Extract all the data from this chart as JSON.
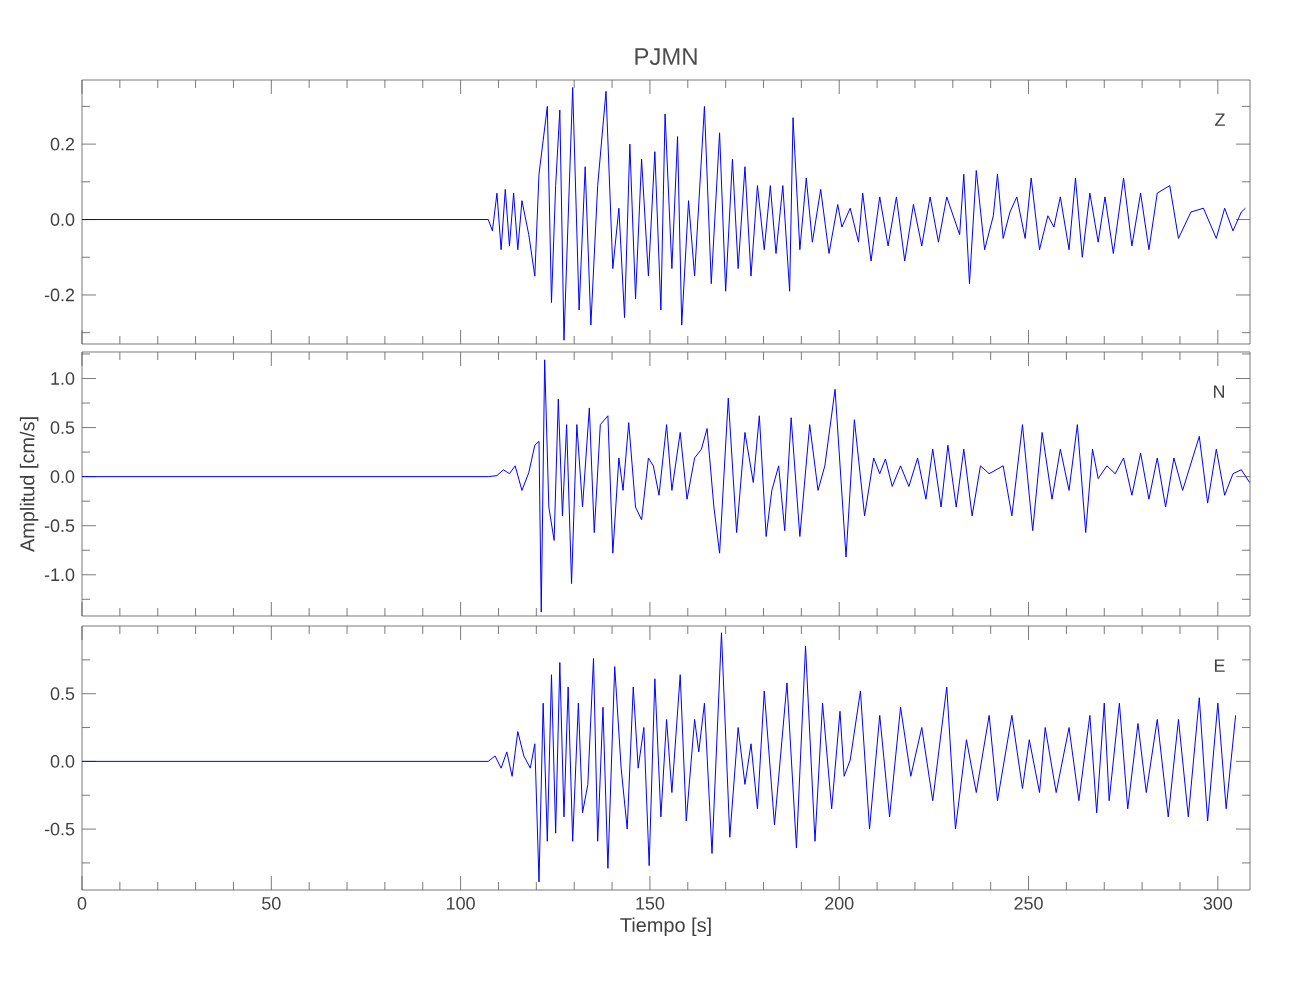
{
  "chart_data": [
    {
      "type": "line",
      "title": "PJMN",
      "annotations": [
        "Z"
      ],
      "color": "#0000ff",
      "tick_labels": "y",
      "xlim": [
        0,
        308.5
      ],
      "ylim": [
        -0.33,
        0.37
      ],
      "xticks": [
        0,
        {
          "value": 10,
          "label": null
        },
        {
          "value": 20,
          "label": null
        },
        {
          "value": 30,
          "label": null
        },
        {
          "value": 40,
          "label": null
        },
        50,
        {
          "value": 60,
          "label": null
        },
        {
          "value": 70,
          "label": null
        },
        {
          "value": 80,
          "label": null
        },
        {
          "value": 90,
          "label": null
        },
        100,
        {
          "value": 110,
          "label": null
        },
        {
          "value": 120,
          "label": null
        },
        {
          "value": 130,
          "label": null
        },
        {
          "value": 140,
          "label": null
        },
        150,
        {
          "value": 160,
          "label": null
        },
        {
          "value": 170,
          "label": null
        },
        {
          "value": 180,
          "label": null
        },
        {
          "value": 190,
          "label": null
        },
        200,
        {
          "value": 210,
          "label": null
        },
        {
          "value": 220,
          "label": null
        },
        {
          "value": 230,
          "label": null
        },
        {
          "value": 240,
          "label": null
        },
        250,
        {
          "value": 260,
          "label": null
        },
        {
          "value": 270,
          "label": null
        },
        {
          "value": 280,
          "label": null
        },
        {
          "value": 290,
          "label": null
        },
        300
      ],
      "yticks": [
        {
          "value": -0.3,
          "label": null
        },
        -0.2,
        {
          "value": -0.1,
          "label": null
        },
        {
          "value": 0,
          "label": "0.0"
        },
        {
          "value": 0.1,
          "label": null
        },
        0.2,
        {
          "value": 0.3,
          "label": null
        }
      ],
      "x": [
        0,
        107.3,
        108.4,
        109.6,
        110.7,
        111.8,
        112.9,
        114.0,
        115.1,
        116.2,
        118.0,
        119.6,
        120.7,
        122.9,
        124.0,
        125.1,
        126.2,
        127.3,
        129.6,
        131.3,
        132.9,
        134.4,
        136.2,
        138.4,
        140.2,
        141.8,
        143.3,
        144.7,
        146.2,
        147.8,
        149.6,
        151.3,
        152.9,
        154.0,
        155.8,
        157.3,
        158.4,
        160.2,
        161.8,
        164.4,
        166.2,
        168.4,
        170.0,
        171.8,
        173.3,
        175.1,
        176.7,
        178.4,
        180.2,
        181.8,
        183.3,
        185.1,
        186.9,
        187.8,
        189.6,
        191.3,
        192.9,
        195.1,
        197.3,
        199.6,
        200.7,
        202.9,
        205.1,
        206.2,
        208.4,
        210.7,
        212.9,
        215.1,
        217.3,
        219.6,
        221.8,
        224.0,
        226.2,
        228.4,
        231.8,
        232.9,
        234.4,
        236.2,
        238.4,
        240.7,
        241.8,
        243.3,
        245.1,
        246.9,
        249.1,
        250.7,
        252.9,
        255.1,
        256.7,
        258.4,
        260.7,
        262.4,
        264.2,
        266.2,
        268.4,
        270.2,
        272.4,
        275.1,
        277.3,
        279.6,
        281.8,
        284.0,
        287.3,
        289.6,
        292.9,
        296.2,
        299.6,
        301.8,
        304.0,
        306.2,
        307.3
      ],
      "values": [
        0,
        0,
        -0.03,
        0.07,
        -0.08,
        0.08,
        -0.07,
        0.07,
        -0.08,
        0.05,
        -0.04,
        -0.15,
        0.12,
        0.3,
        -0.22,
        0.09,
        0.29,
        -0.32,
        0.35,
        -0.24,
        0.14,
        -0.28,
        0.09,
        0.34,
        -0.13,
        0.03,
        -0.26,
        0.2,
        -0.21,
        0.16,
        -0.15,
        0.18,
        -0.24,
        0.28,
        -0.13,
        0.22,
        -0.28,
        0.05,
        -0.15,
        0.3,
        -0.17,
        0.23,
        -0.19,
        0.16,
        -0.13,
        0.14,
        -0.15,
        0.09,
        -0.08,
        0.09,
        -0.09,
        0.09,
        -0.19,
        0.27,
        -0.08,
        0.11,
        -0.06,
        0.08,
        -0.09,
        0.04,
        -0.02,
        0.03,
        -0.06,
        0.07,
        -0.11,
        0.06,
        -0.07,
        0.06,
        -0.11,
        0.04,
        -0.07,
        0.06,
        -0.06,
        0.06,
        -0.04,
        0.12,
        -0.17,
        0.13,
        -0.08,
        0.01,
        0.12,
        -0.05,
        0.02,
        0.06,
        -0.05,
        0.11,
        -0.08,
        0.01,
        -0.02,
        0.06,
        -0.08,
        0.11,
        -0.1,
        0.07,
        -0.06,
        0.06,
        -0.09,
        0.11,
        -0.07,
        0.07,
        -0.08,
        0.07,
        0.09,
        -0.05,
        0.02,
        0.03,
        -0.05,
        0.03,
        -0.03,
        0.02,
        0.03
      ]
    },
    {
      "type": "line",
      "ylabel": "Amplitud [cm/s]",
      "annotations": [
        "N"
      ],
      "color": "#0000ff",
      "tick_labels": "y",
      "xlim": [
        0,
        308.5
      ],
      "ylim": [
        -1.42,
        1.27
      ],
      "xticks": [
        0,
        {
          "value": 10,
          "label": null
        },
        {
          "value": 20,
          "label": null
        },
        {
          "value": 30,
          "label": null
        },
        {
          "value": 40,
          "label": null
        },
        50,
        {
          "value": 60,
          "label": null
        },
        {
          "value": 70,
          "label": null
        },
        {
          "value": 80,
          "label": null
        },
        {
          "value": 90,
          "label": null
        },
        100,
        {
          "value": 110,
          "label": null
        },
        {
          "value": 120,
          "label": null
        },
        {
          "value": 130,
          "label": null
        },
        {
          "value": 140,
          "label": null
        },
        150,
        {
          "value": 160,
          "label": null
        },
        {
          "value": 170,
          "label": null
        },
        {
          "value": 180,
          "label": null
        },
        {
          "value": 190,
          "label": null
        },
        200,
        {
          "value": 210,
          "label": null
        },
        {
          "value": 220,
          "label": null
        },
        {
          "value": 230,
          "label": null
        },
        {
          "value": 240,
          "label": null
        },
        250,
        {
          "value": 260,
          "label": null
        },
        {
          "value": 270,
          "label": null
        },
        {
          "value": 280,
          "label": null
        },
        {
          "value": 290,
          "label": null
        },
        300
      ],
      "yticks": [
        {
          "value": -1.25,
          "label": null
        },
        {
          "value": -1,
          "label": "-1.0"
        },
        {
          "value": -0.75,
          "label": null
        },
        -0.5,
        {
          "value": -0.25,
          "label": null
        },
        {
          "value": 0,
          "label": "0.0"
        },
        {
          "value": 0.25,
          "label": null
        },
        0.5,
        {
          "value": 0.75,
          "label": null
        },
        {
          "value": 1,
          "label": "1.0"
        },
        {
          "value": 1.25,
          "label": null
        }
      ],
      "x": [
        0,
        107.3,
        109.6,
        111.3,
        112.9,
        114.4,
        116.2,
        118.0,
        119.6,
        120.7,
        121.3,
        122.2,
        123.3,
        124.7,
        125.8,
        126.9,
        128.0,
        129.3,
        130.7,
        132.2,
        134.0,
        135.3,
        136.9,
        138.9,
        140.2,
        141.8,
        142.9,
        144.4,
        146.2,
        147.8,
        149.6,
        150.9,
        152.4,
        154.4,
        155.8,
        158.0,
        159.8,
        161.8,
        163.6,
        165.1,
        166.9,
        168.4,
        170.7,
        172.9,
        175.1,
        177.3,
        178.9,
        180.7,
        182.2,
        184.0,
        185.6,
        187.3,
        189.6,
        192.2,
        194.4,
        196.2,
        198.9,
        201.8,
        204.0,
        206.7,
        209.1,
        210.7,
        212.2,
        214.0,
        216.2,
        218.4,
        220.7,
        222.9,
        224.7,
        226.9,
        228.7,
        230.9,
        232.9,
        235.1,
        237.3,
        239.6,
        243.3,
        245.6,
        248.4,
        251.1,
        253.6,
        256.2,
        258.4,
        260.7,
        262.9,
        265.1,
        266.9,
        268.4,
        270.7,
        272.9,
        275.1,
        277.3,
        279.6,
        281.8,
        284.0,
        286.2,
        288.4,
        290.7,
        295.1,
        297.3,
        299.6,
        301.8,
        304.0,
        306.2,
        308.4
      ],
      "values": [
        0,
        0,
        0.01,
        0.07,
        0.03,
        0.11,
        -0.14,
        0.04,
        0.32,
        0.36,
        -1.38,
        1.19,
        -0.31,
        -0.65,
        0.79,
        -0.4,
        0.53,
        -1.09,
        0.53,
        -0.31,
        0.7,
        -0.57,
        0.53,
        0.62,
        -0.78,
        0.19,
        -0.14,
        0.55,
        -0.31,
        -0.44,
        0.19,
        0.11,
        -0.19,
        0.53,
        -0.14,
        0.45,
        -0.23,
        0.19,
        0.28,
        0.49,
        -0.31,
        -0.78,
        0.8,
        -0.57,
        0.45,
        -0.06,
        0.62,
        -0.61,
        -0.14,
        0.11,
        -0.55,
        0.6,
        -0.61,
        0.53,
        -0.14,
        0.11,
        0.89,
        -0.82,
        0.58,
        -0.4,
        0.19,
        0.03,
        0.18,
        -0.1,
        0.11,
        -0.1,
        0.19,
        -0.23,
        0.28,
        -0.31,
        0.32,
        -0.31,
        0.28,
        -0.4,
        0.11,
        0.03,
        0.11,
        -0.4,
        0.53,
        -0.55,
        0.45,
        -0.23,
        0.28,
        -0.14,
        0.53,
        -0.57,
        0.28,
        -0.02,
        0.11,
        0.03,
        0.19,
        -0.19,
        0.24,
        -0.23,
        0.19,
        -0.31,
        0.19,
        -0.14,
        0.41,
        -0.27,
        0.28,
        -0.19,
        0.03,
        0.07,
        -0.06
      ]
    },
    {
      "type": "line",
      "xlabel": "Tiempo [s]",
      "annotations": [
        "E"
      ],
      "color": "#0000ff",
      "xlim": [
        0,
        308.5
      ],
      "ylim": [
        -0.95,
        1.0
      ],
      "xticks": [
        0,
        {
          "value": 10,
          "label": null
        },
        {
          "value": 20,
          "label": null
        },
        {
          "value": 30,
          "label": null
        },
        {
          "value": 40,
          "label": null
        },
        50,
        {
          "value": 60,
          "label": null
        },
        {
          "value": 70,
          "label": null
        },
        {
          "value": 80,
          "label": null
        },
        {
          "value": 90,
          "label": null
        },
        100,
        {
          "value": 110,
          "label": null
        },
        {
          "value": 120,
          "label": null
        },
        {
          "value": 130,
          "label": null
        },
        {
          "value": 140,
          "label": null
        },
        150,
        {
          "value": 160,
          "label": null
        },
        {
          "value": 170,
          "label": null
        },
        {
          "value": 180,
          "label": null
        },
        {
          "value": 190,
          "label": null
        },
        200,
        {
          "value": 210,
          "label": null
        },
        {
          "value": 220,
          "label": null
        },
        {
          "value": 230,
          "label": null
        },
        {
          "value": 240,
          "label": null
        },
        250,
        {
          "value": 260,
          "label": null
        },
        {
          "value": 270,
          "label": null
        },
        {
          "value": 280,
          "label": null
        },
        {
          "value": 290,
          "label": null
        },
        300
      ],
      "yticks": [
        {
          "value": -0.75,
          "label": null
        },
        -0.5,
        {
          "value": -0.25,
          "label": null
        },
        {
          "value": 0,
          "label": "0.0"
        },
        {
          "value": 0.25,
          "label": null
        },
        0.5,
        {
          "value": 0.75,
          "label": null
        }
      ],
      "x": [
        0,
        107.3,
        109.1,
        110.7,
        112.2,
        113.6,
        115.1,
        116.7,
        118.4,
        119.6,
        120.7,
        121.8,
        122.9,
        124.0,
        125.1,
        126.2,
        127.3,
        128.4,
        129.6,
        131.1,
        132.2,
        133.6,
        135.1,
        136.2,
        137.6,
        138.9,
        140.7,
        142.4,
        144.0,
        145.6,
        146.9,
        148.4,
        149.8,
        151.3,
        152.9,
        154.4,
        155.8,
        158.0,
        159.6,
        161.8,
        162.9,
        164.4,
        166.4,
        168.9,
        171.1,
        173.3,
        175.1,
        176.7,
        178.4,
        180.2,
        182.9,
        186.2,
        188.7,
        191.1,
        193.6,
        195.6,
        198.0,
        200.2,
        201.3,
        202.9,
        205.6,
        208.0,
        210.7,
        213.3,
        216.2,
        218.9,
        221.8,
        224.7,
        228.4,
        230.7,
        233.6,
        236.2,
        239.6,
        241.8,
        245.6,
        248.4,
        250.2,
        252.9,
        254.4,
        257.3,
        260.7,
        263.3,
        266.2,
        268.0,
        270.0,
        271.3,
        274.0,
        276.2,
        278.9,
        281.1,
        284.0,
        286.9,
        289.6,
        292.2,
        295.1,
        297.3,
        300.0,
        302.2,
        304.7
      ],
      "values": [
        0,
        0,
        0.04,
        -0.05,
        0.07,
        -0.11,
        0.22,
        0.04,
        -0.05,
        0.13,
        -0.89,
        0.43,
        -0.59,
        0.64,
        -0.53,
        0.73,
        -0.41,
        0.55,
        -0.59,
        0.43,
        -0.38,
        -0.17,
        0.76,
        -0.59,
        0.4,
        -0.79,
        0.7,
        -0.05,
        -0.5,
        0.55,
        -0.05,
        0.25,
        -0.77,
        0.61,
        -0.41,
        0.31,
        -0.23,
        0.64,
        -0.44,
        0.31,
        0.07,
        0.43,
        -0.68,
        0.95,
        -0.56,
        0.25,
        -0.17,
        0.13,
        -0.35,
        0.52,
        -0.47,
        0.58,
        -0.64,
        0.85,
        -0.59,
        0.43,
        -0.35,
        0.37,
        -0.11,
        0.01,
        0.52,
        -0.5,
        0.34,
        -0.41,
        0.4,
        -0.11,
        0.25,
        -0.29,
        0.55,
        -0.5,
        0.16,
        -0.23,
        0.34,
        -0.29,
        0.34,
        -0.2,
        0.16,
        -0.23,
        0.25,
        -0.23,
        0.25,
        -0.29,
        0.34,
        -0.38,
        0.43,
        -0.29,
        0.43,
        -0.35,
        0.28,
        -0.23,
        0.31,
        -0.41,
        0.31,
        -0.41,
        0.47,
        -0.44,
        0.43,
        -0.35,
        0.34
      ]
    }
  ]
}
